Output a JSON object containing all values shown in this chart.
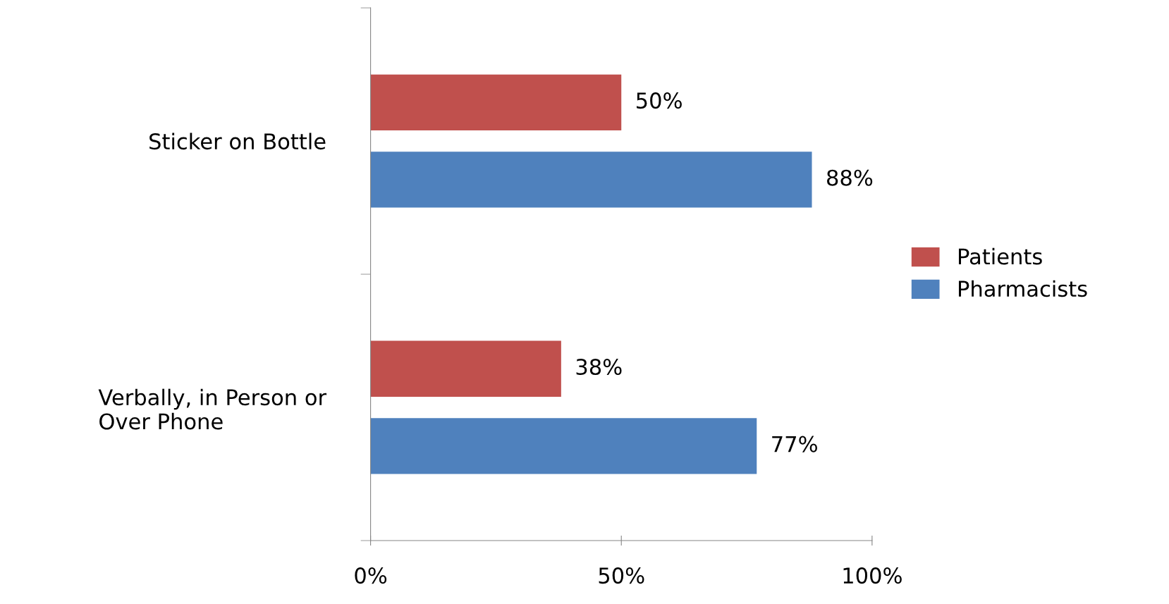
{
  "chart_data": {
    "type": "bar",
    "orientation": "horizontal",
    "categories": [
      "Sticker on Bottle",
      "Verbally, in Person or\nOver Phone"
    ],
    "series": [
      {
        "name": "Patients",
        "color": "#c0504d",
        "values": [
          50,
          38
        ],
        "value_labels": [
          "50%",
          "38%"
        ]
      },
      {
        "name": "Pharmacists",
        "color": "#4f81bd",
        "values": [
          88,
          77
        ],
        "value_labels": [
          "88%",
          "77%"
        ]
      }
    ],
    "xlim": [
      0,
      100
    ],
    "xticks": [
      {
        "value": 0,
        "label": "0%"
      },
      {
        "value": 50,
        "label": "50%"
      },
      {
        "value": 100,
        "label": "100%"
      }
    ],
    "grid": false,
    "legend": "right"
  }
}
